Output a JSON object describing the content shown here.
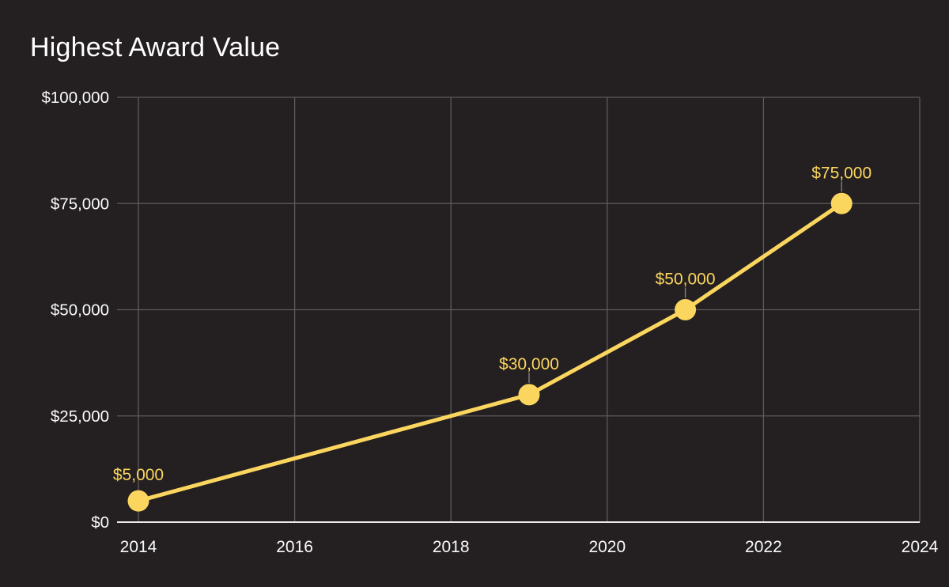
{
  "chart_data": {
    "type": "line",
    "title": "Highest Award Value",
    "series_name": "Highest Award Value",
    "x": [
      2014,
      2019,
      2021,
      2023
    ],
    "values": [
      5000,
      30000,
      50000,
      75000
    ],
    "point_labels": [
      "$5,000",
      "$30,000",
      "$50,000",
      "$75,000"
    ],
    "x_ticks": {
      "values": [
        2014,
        2016,
        2018,
        2020,
        2022,
        2024
      ],
      "labels": [
        "2014",
        "2016",
        "2018",
        "2020",
        "2022",
        "2024"
      ]
    },
    "y_ticks": {
      "values": [
        0,
        25000,
        50000,
        75000,
        100000
      ],
      "labels": [
        "$0",
        "$25,000",
        "$50,000",
        "$75,000",
        "$100,000"
      ]
    },
    "xlim": [
      2014,
      2024
    ],
    "ylim": [
      0,
      100000
    ],
    "grid": true,
    "legend": "none",
    "colors": {
      "background": "#241f20",
      "line": "#fbd65f",
      "marker": "#fbd65f",
      "data_label": "#fbd65f",
      "grid": "#5e5b5c",
      "axis": "#eceaea",
      "tick_text": "#fafafa",
      "title_text": "#ffffff",
      "leader": "#7d7a79"
    }
  }
}
